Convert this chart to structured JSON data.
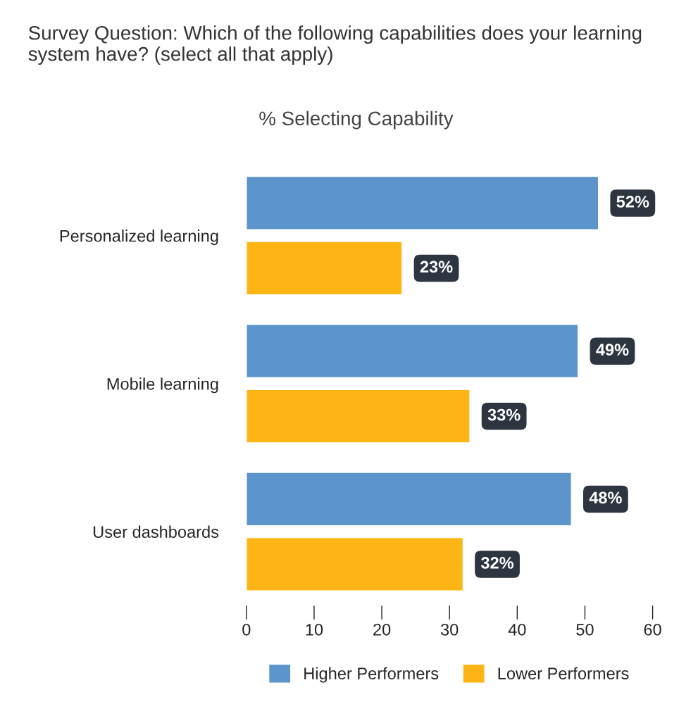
{
  "chart_data": {
    "type": "bar",
    "orientation": "horizontal",
    "title": "Survey Question: Which of the following capabilities does your learning system have? (select all that apply)",
    "subtitle": "% Selecting Capability",
    "categories": [
      "Personalized learning",
      "Mobile learning",
      "User dashboards"
    ],
    "series": [
      {
        "name": "Higher Performers",
        "color": "#5b95cc",
        "values": [
          52,
          49,
          48
        ],
        "value_labels": [
          "52%",
          "49%",
          "48%"
        ]
      },
      {
        "name": "Lower Performers",
        "color": "#fdb515",
        "values": [
          23,
          33,
          32
        ],
        "value_labels": [
          "23%",
          "33%",
          "32%"
        ]
      }
    ],
    "xlim": [
      0,
      60
    ],
    "xticks": [
      0,
      10,
      20,
      30,
      40,
      50,
      60
    ],
    "grid": false,
    "legend": "bottom"
  }
}
